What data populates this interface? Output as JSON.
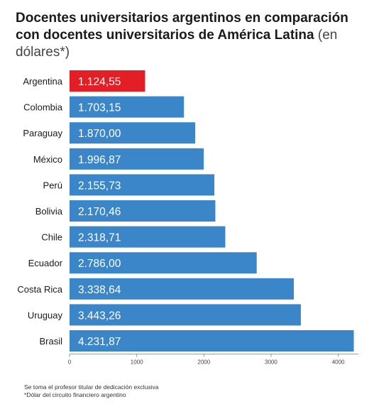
{
  "title": {
    "line1": "Docentes universitarios argentinos en comparación",
    "line2": "con docentes universitarios de América Latina",
    "suffix": "(en dólares*)"
  },
  "colors": {
    "highlight": "#e31e24",
    "bar": "#3a86c8",
    "axis": "#999999",
    "text": "#1a1a1a"
  },
  "chart_data": {
    "type": "bar",
    "orientation": "horizontal",
    "categories": [
      "Argentina",
      "Colombia",
      "Paraguay",
      "México",
      "Perú",
      "Bolivia",
      "Chile",
      "Ecuador",
      "Costa Rica",
      "Uruguay",
      "Brasil"
    ],
    "values": [
      1124.55,
      1703.15,
      1870.0,
      1996.87,
      2155.73,
      2170.46,
      2318.71,
      2786.0,
      3338.64,
      3443.26,
      4231.87
    ],
    "value_labels": [
      "1.124,55",
      "1.703,15",
      "1.870,00",
      "1.996,87",
      "2.155,73",
      "2.170,46",
      "2.318,71",
      "2.786,00",
      "3.338,64",
      "3.443,26",
      "4.231,87"
    ],
    "highlight_category": "Argentina",
    "xlim": [
      0,
      4300
    ],
    "xticks": [
      "0",
      "1000",
      "2000",
      "3000",
      "4000"
    ],
    "xtick_values": [
      0,
      1000,
      2000,
      3000,
      4000
    ],
    "grid": false
  },
  "notes": [
    "Se toma el profesor titular de dedicación exclusiva",
    "*Dólar del circuito financiero argentino"
  ]
}
